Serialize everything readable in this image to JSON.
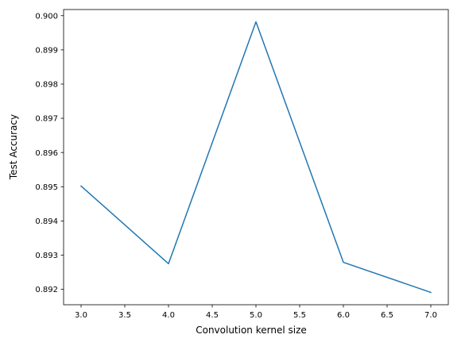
{
  "chart_data": {
    "type": "line",
    "title": "",
    "xlabel": "Convolution kernel size",
    "ylabel": "Test Accuracy",
    "x": [
      3.0,
      4.0,
      5.0,
      6.0,
      7.0
    ],
    "series": [
      {
        "values": [
          0.89502,
          0.89275,
          0.89982,
          0.89279,
          0.89191
        ],
        "color": "#1f77b4"
      }
    ],
    "xlim": [
      2.8,
      7.2
    ],
    "ylim": [
      0.89155,
      0.90018
    ],
    "xticks": [
      3.0,
      3.5,
      4.0,
      4.5,
      5.0,
      5.5,
      6.0,
      6.5,
      7.0
    ],
    "xtick_labels": [
      "3.0",
      "3.5",
      "4.0",
      "4.5",
      "5.0",
      "5.5",
      "6.0",
      "6.5",
      "7.0"
    ],
    "yticks": [
      0.892,
      0.893,
      0.894,
      0.895,
      0.896,
      0.897,
      0.898,
      0.899,
      0.9
    ],
    "ytick_labels": [
      "0.892",
      "0.893",
      "0.894",
      "0.895",
      "0.896",
      "0.897",
      "0.898",
      "0.899",
      "0.900"
    ],
    "grid": false,
    "legend": "none"
  }
}
